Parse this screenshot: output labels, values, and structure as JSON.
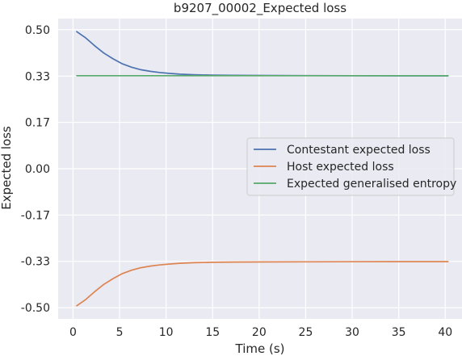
{
  "chart_data": {
    "type": "line",
    "title": "b9207_00002_Expected loss",
    "xlabel": "Time (s)",
    "ylabel": "Expected loss",
    "xlim": [
      -1.6,
      41.8
    ],
    "ylim": [
      -0.54,
      0.54
    ],
    "xticks": [
      0,
      5,
      10,
      15,
      20,
      25,
      30,
      35,
      40
    ],
    "xtick_labels": [
      "0",
      "5",
      "10",
      "15",
      "20",
      "25",
      "30",
      "35",
      "40"
    ],
    "yticks": [
      0.5,
      0.333,
      0.1667,
      0.0,
      -0.1667,
      -0.333,
      -0.5
    ],
    "ytick_labels": [
      "0.50",
      "0.33",
      "0.17",
      "0.00",
      "-0.17",
      "-0.33",
      "-0.50"
    ],
    "grid": true,
    "legend_position": "center-right",
    "background": "#eaeaf2",
    "series": [
      {
        "name": "Contestant expected loss",
        "color": "#4c72b0",
        "x": [
          0.4,
          1.3,
          2.3,
          3.3,
          4.3,
          5.3,
          6.3,
          7.3,
          8.3,
          9.3,
          10.3,
          11.5,
          13,
          15,
          17.5,
          20,
          25,
          30,
          35,
          40.3
        ],
        "y": [
          0.493,
          0.472,
          0.443,
          0.416,
          0.395,
          0.377,
          0.365,
          0.356,
          0.35,
          0.346,
          0.343,
          0.34,
          0.338,
          0.3365,
          0.3357,
          0.3352,
          0.3348,
          0.3345,
          0.3343,
          0.3342
        ]
      },
      {
        "name": "Host expected loss",
        "color": "#dd8452",
        "x": [
          0.4,
          1.3,
          2.3,
          3.3,
          4.3,
          5.3,
          6.3,
          7.3,
          8.3,
          9.3,
          10.3,
          11.5,
          13,
          15,
          17.5,
          20,
          25,
          30,
          35,
          40.3
        ],
        "y": [
          -0.493,
          -0.472,
          -0.443,
          -0.416,
          -0.395,
          -0.377,
          -0.365,
          -0.356,
          -0.35,
          -0.346,
          -0.343,
          -0.34,
          -0.338,
          -0.3365,
          -0.3357,
          -0.3352,
          -0.3348,
          -0.3345,
          -0.3343,
          -0.3342
        ]
      },
      {
        "name": "Expected generalised entropy",
        "color": "#55a868",
        "x": [
          0.4,
          40.3
        ],
        "y": [
          0.3345,
          0.3345
        ]
      }
    ]
  }
}
